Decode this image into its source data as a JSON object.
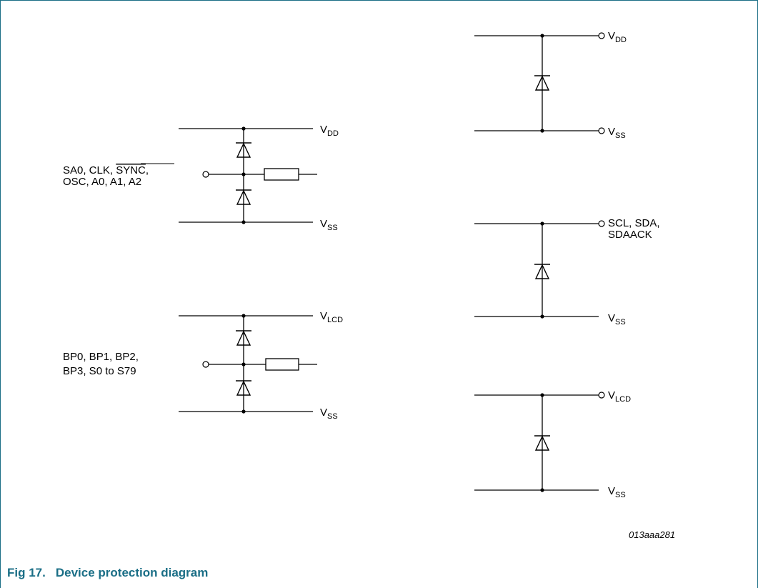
{
  "diagram": {
    "circuit1": {
      "input_line1": "SA0, CLK, ",
      "input_line1_overbar": "SYNC",
      "input_line1_tail": ",",
      "input_line2": "OSC, A0, A1, A2",
      "top_rail": {
        "main": "V",
        "sub": "DD"
      },
      "bottom_rail": {
        "main": "V",
        "sub": "SS"
      }
    },
    "circuit2": {
      "input_line1": "BP0, BP1, BP2,",
      "input_line2": "BP3, S0 to S79",
      "top_rail": {
        "main": "V",
        "sub": "LCD"
      },
      "bottom_rail": {
        "main": "V",
        "sub": "SS"
      }
    },
    "circuit3": {
      "top_rail": {
        "main": "V",
        "sub": "DD"
      },
      "bottom_rail": {
        "main": "V",
        "sub": "SS"
      }
    },
    "circuit4": {
      "top_line1": "SCL, SDA,",
      "top_line2": "SDAACK",
      "bottom_rail": {
        "main": "V",
        "sub": "SS"
      }
    },
    "circuit5": {
      "top_rail": {
        "main": "V",
        "sub": "LCD"
      },
      "bottom_rail": {
        "main": "V",
        "sub": "SS"
      }
    },
    "reference": "013aaa281"
  },
  "caption": {
    "number": "Fig 17.",
    "title": "Device protection diagram"
  },
  "colors": {
    "caption": "#1a6e86",
    "border": "#1a6e86",
    "line": "#000000"
  }
}
